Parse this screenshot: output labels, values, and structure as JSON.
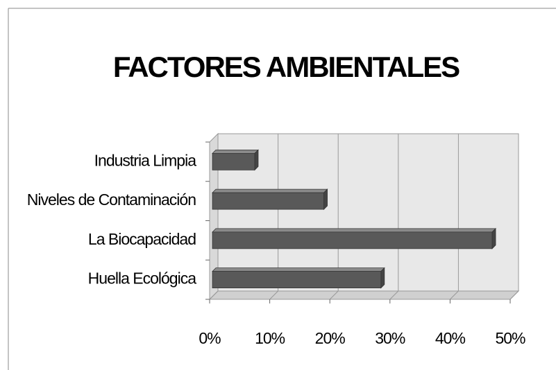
{
  "chart_data": {
    "type": "bar3d",
    "title": "FACTORES AMBIENTALES",
    "categories": [
      "Industria Limpia",
      "Niveles de Contaminación",
      "La Biocapacidad",
      "Huella Ecológica"
    ],
    "values": [
      7.5,
      19,
      47,
      28.5
    ],
    "color": "#595959",
    "xlim": [
      0,
      50
    ],
    "xticks": [
      {
        "value": 0,
        "label": "0%"
      },
      {
        "value": 10,
        "label": "10%"
      },
      {
        "value": 20,
        "label": "20%"
      },
      {
        "value": 30,
        "label": "30%"
      },
      {
        "value": 40,
        "label": "40%"
      },
      {
        "value": 50,
        "label": "50%"
      }
    ],
    "grid": true
  }
}
